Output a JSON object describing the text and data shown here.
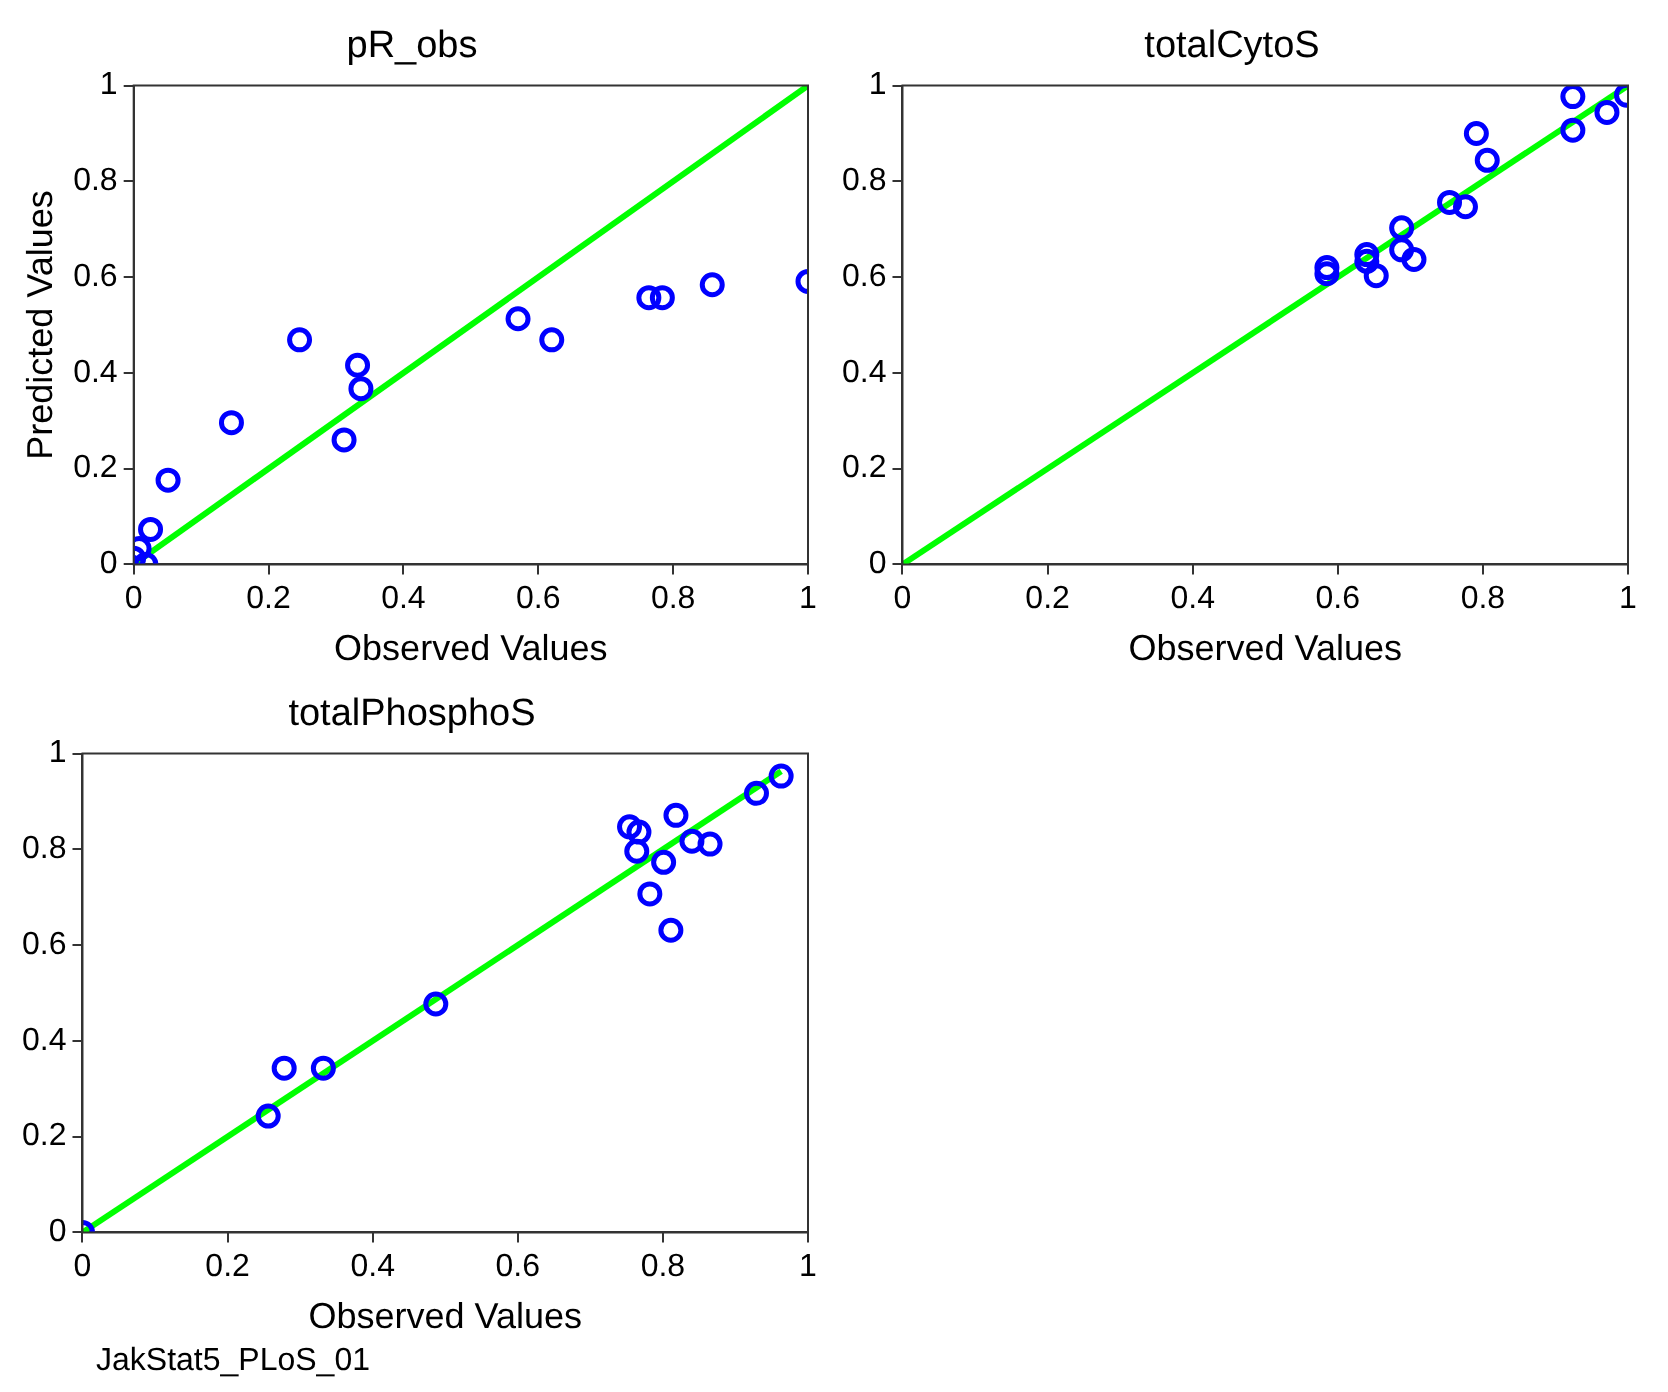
{
  "chart_data": [
    {
      "type": "scatter",
      "title": "pR_obs",
      "xlabel": "Observed Values",
      "ylabel": "Predicted Values",
      "xlim": [
        0,
        1
      ],
      "ylim": [
        0,
        1
      ],
      "xticks": [
        0,
        0.2,
        0.4,
        0.6,
        0.8,
        1
      ],
      "yticks": [
        0,
        0.2,
        0.4,
        0.6,
        0.8,
        1
      ],
      "grid": false,
      "legend": false,
      "series": [
        {
          "marker": "circle",
          "color": "#0000ff",
          "x": [
            0,
            0.008,
            0.018,
            0.025,
            0.051,
            0.145,
            0.246,
            0.312,
            0.332,
            0.337,
            0.57,
            0.62,
            0.764,
            0.784,
            0.858,
            1.0
          ],
          "values": [
            0.013,
            0.033,
            0,
            0.073,
            0.176,
            0.296,
            0.469,
            0.26,
            0.416,
            0.367,
            0.513,
            0.469,
            0.557,
            0.557,
            0.584,
            0.591
          ]
        },
        {
          "type": "line",
          "marker": "none",
          "color": "#00ff00",
          "x": [
            0,
            1
          ],
          "values": [
            0,
            1
          ]
        }
      ]
    },
    {
      "type": "scatter",
      "title": "totalCytoS",
      "xlabel": "Observed Values",
      "xlim": [
        0,
        1
      ],
      "ylim": [
        0,
        1
      ],
      "xticks": [
        0,
        0.2,
        0.4,
        0.6,
        0.8,
        1
      ],
      "yticks": [
        0,
        0.2,
        0.4,
        0.6,
        0.8,
        1
      ],
      "grid": false,
      "legend": false,
      "series": [
        {
          "marker": "circle",
          "color": "#0000ff",
          "x": [
            0.585,
            0.585,
            0.64,
            0.64,
            0.653,
            0.688,
            0.688,
            0.705,
            0.754,
            0.776,
            0.791,
            0.806,
            0.924,
            0.924,
            0.971,
            0.998
          ],
          "values": [
            0.62,
            0.607,
            0.647,
            0.633,
            0.603,
            0.703,
            0.657,
            0.637,
            0.756,
            0.747,
            0.9,
            0.844,
            0.977,
            0.907,
            0.944,
            0.98
          ]
        },
        {
          "type": "line",
          "marker": "none",
          "color": "#00ff00",
          "x": [
            0,
            1
          ],
          "values": [
            0,
            1
          ]
        }
      ]
    },
    {
      "type": "scatter",
      "title": "totalPhosphoS",
      "xlabel": "Observed Values",
      "xlim": [
        0,
        1
      ],
      "ylim": [
        0,
        1
      ],
      "xticks": [
        0,
        0.2,
        0.4,
        0.6,
        0.8,
        1
      ],
      "yticks": [
        0,
        0.2,
        0.4,
        0.6,
        0.8,
        1
      ],
      "grid": false,
      "legend": false,
      "annotations": [
        "JakStat5_PLoS_01"
      ],
      "series": [
        {
          "marker": "circle",
          "color": "#0000ff",
          "x": [
            0,
            0.256,
            0.278,
            0.332,
            0.487,
            0.754,
            0.767,
            0.764,
            0.782,
            0.801,
            0.811,
            0.818,
            0.84,
            0.865,
            0.929,
            0.963
          ],
          "values": [
            0,
            0.243,
            0.343,
            0.343,
            0.477,
            0.847,
            0.836,
            0.796,
            0.707,
            0.773,
            0.631,
            0.871,
            0.817,
            0.811,
            0.917,
            0.953
          ]
        },
        {
          "type": "line",
          "marker": "none",
          "color": "#00ff00",
          "x": [
            0,
            0.963
          ],
          "values": [
            0,
            0.963
          ]
        }
      ]
    }
  ]
}
